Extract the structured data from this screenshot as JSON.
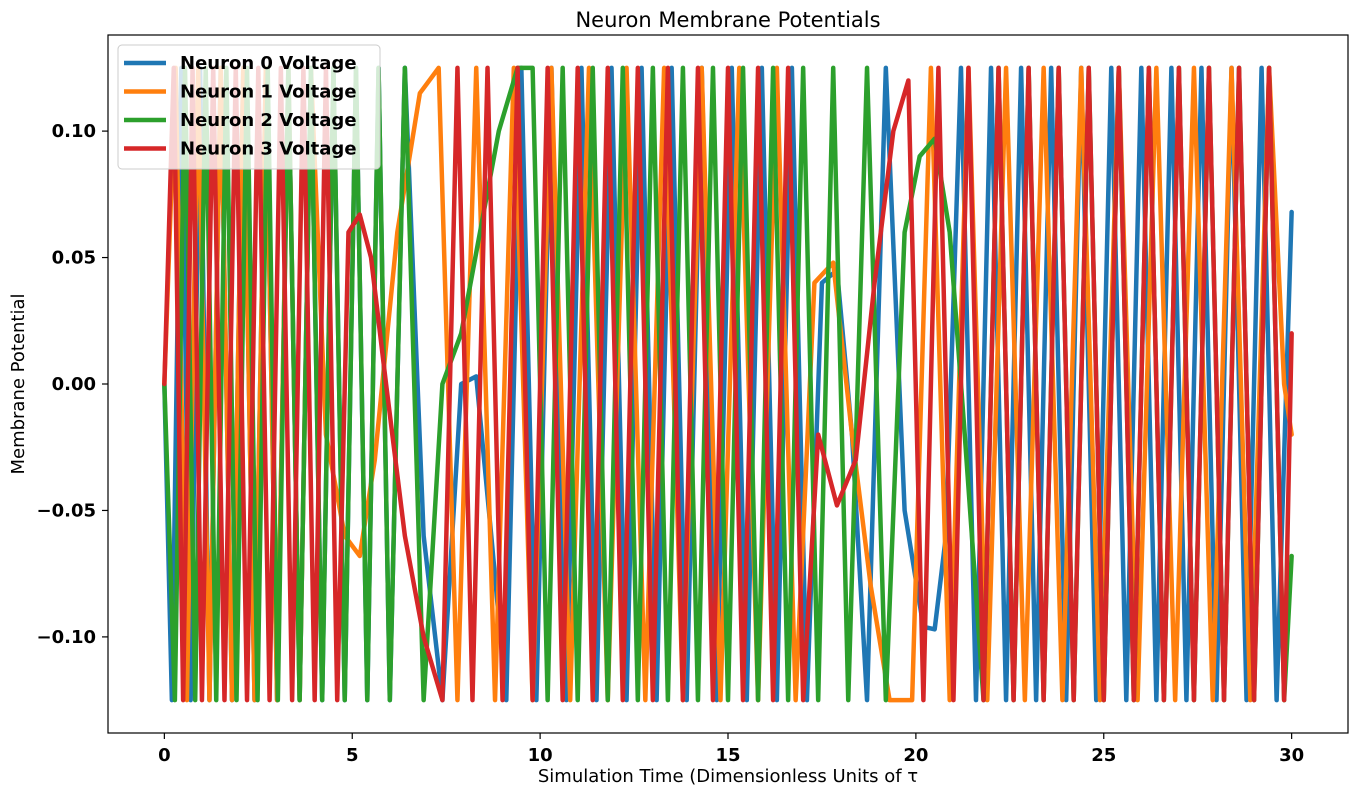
{
  "chart_data": {
    "type": "line",
    "title": "Neuron Membrane Potentials",
    "xlabel": "Simulation Time (Dimensionless Units of τ",
    "ylabel": "Membrane Potential",
    "xlim": [
      -1.5,
      31.5
    ],
    "ylim": [
      -0.138,
      0.138
    ],
    "xticks": [
      0,
      5,
      10,
      15,
      20,
      25,
      30
    ],
    "xtick_labels": [
      "0",
      "5",
      "10",
      "15",
      "20",
      "25",
      "30"
    ],
    "yticks": [
      -0.1,
      -0.05,
      0.0,
      0.05,
      0.1
    ],
    "ytick_labels": [
      "−0.10",
      "−0.05",
      "0.00",
      "0.05",
      "0.10"
    ],
    "grid": false,
    "legend_position": "upper-left",
    "series": [
      {
        "name": "Neuron 0 Voltage",
        "color": "#1f77b4",
        "x": [
          0,
          0.2,
          0.45,
          0.7,
          0.95,
          1.2,
          1.5,
          1.8,
          2.1,
          2.4,
          2.7,
          3.0,
          3.3,
          3.6,
          3.9,
          4.2,
          4.5,
          4.8,
          5.1,
          5.4,
          5.7,
          6.0,
          6.4,
          6.9,
          7.4,
          7.9,
          8.3,
          8.7,
          9.1,
          9.5,
          9.9,
          10.3,
          10.7,
          11.1,
          11.5,
          11.9,
          12.3,
          12.7,
          13.1,
          13.5,
          13.9,
          14.3,
          14.7,
          15.1,
          15.5,
          15.9,
          16.3,
          16.7,
          17.1,
          17.5,
          17.9,
          18.3,
          18.7,
          19.2,
          19.7,
          20.2,
          20.5,
          20.8,
          21.2,
          21.6,
          22.0,
          22.4,
          22.8,
          23.2,
          23.6,
          24.0,
          24.4,
          24.8,
          25.2,
          25.6,
          26.0,
          26.4,
          26.8,
          27.2,
          27.6,
          28.0,
          28.4,
          28.8,
          29.2,
          29.6,
          30.0
        ],
        "y": [
          0,
          -0.125,
          0.125,
          -0.125,
          0.125,
          -0.125,
          0.125,
          -0.125,
          0.125,
          -0.125,
          0.125,
          -0.125,
          0.125,
          -0.125,
          0.125,
          -0.125,
          0.125,
          -0.125,
          0.125,
          -0.125,
          0.125,
          -0.125,
          0.125,
          -0.06,
          -0.125,
          0.0,
          0.003,
          -0.06,
          -0.125,
          0.125,
          -0.125,
          0.125,
          -0.125,
          0.125,
          -0.125,
          0.125,
          -0.125,
          0.125,
          -0.125,
          0.125,
          -0.125,
          0.125,
          -0.125,
          0.125,
          -0.125,
          0.125,
          -0.125,
          0.125,
          -0.125,
          0.04,
          0.045,
          -0.02,
          -0.125,
          0.125,
          -0.05,
          -0.096,
          -0.097,
          -0.06,
          0.125,
          -0.125,
          0.125,
          -0.125,
          0.125,
          -0.125,
          0.125,
          -0.125,
          0.125,
          -0.125,
          0.125,
          -0.125,
          0.125,
          -0.125,
          0.125,
          -0.125,
          0.125,
          -0.125,
          0.125,
          -0.125,
          0.125,
          -0.125,
          0.068
        ]
      },
      {
        "name": "Neuron 1 Voltage",
        "color": "#ff7f0e",
        "x": [
          0,
          0.3,
          0.6,
          0.9,
          1.2,
          1.5,
          1.8,
          2.1,
          2.4,
          2.7,
          3.0,
          3.3,
          3.6,
          3.9,
          4.3,
          4.8,
          5.2,
          5.6,
          6.2,
          6.8,
          7.3,
          7.8,
          8.3,
          8.8,
          9.3,
          9.8,
          10.3,
          10.8,
          11.3,
          11.8,
          12.3,
          12.8,
          13.3,
          13.8,
          14.3,
          14.8,
          15.3,
          15.8,
          16.3,
          16.8,
          17.3,
          17.8,
          18.3,
          18.8,
          19.3,
          19.9,
          20.4,
          20.9,
          21.4,
          21.9,
          22.4,
          22.9,
          23.4,
          23.9,
          24.4,
          24.9,
          25.4,
          25.9,
          26.4,
          26.9,
          27.4,
          27.9,
          28.4,
          28.9,
          29.4,
          29.8,
          30.0
        ],
        "y": [
          0,
          0.125,
          -0.125,
          0.125,
          -0.125,
          0.125,
          -0.125,
          0.125,
          -0.125,
          0.125,
          -0.125,
          0.125,
          -0.125,
          0.125,
          -0.02,
          -0.06,
          -0.068,
          -0.03,
          0.06,
          0.115,
          0.125,
          -0.125,
          0.125,
          -0.125,
          0.125,
          -0.125,
          0.125,
          -0.125,
          0.125,
          -0.125,
          0.125,
          -0.125,
          0.125,
          -0.125,
          0.125,
          -0.125,
          0.125,
          -0.125,
          0.125,
          -0.125,
          0.04,
          0.048,
          -0.02,
          -0.08,
          -0.125,
          -0.125,
          0.125,
          -0.125,
          0.125,
          -0.125,
          0.125,
          -0.125,
          0.125,
          -0.125,
          0.125,
          -0.125,
          0.125,
          -0.125,
          0.125,
          -0.125,
          0.125,
          -0.125,
          0.125,
          -0.125,
          0.125,
          0.0,
          -0.02
        ]
      },
      {
        "name": "Neuron 2 Voltage",
        "color": "#2ca02c",
        "x": [
          0,
          0.28,
          0.55,
          0.82,
          1.1,
          1.38,
          1.65,
          1.92,
          2.2,
          2.48,
          2.75,
          3.02,
          3.3,
          3.6,
          3.9,
          4.2,
          4.5,
          4.8,
          5.1,
          5.4,
          5.7,
          6.0,
          6.4,
          6.9,
          7.4,
          7.9,
          8.4,
          8.9,
          9.4,
          9.8,
          10.2,
          10.6,
          11.0,
          11.4,
          11.8,
          12.2,
          12.6,
          13.0,
          13.4,
          13.8,
          14.2,
          14.6,
          15.0,
          15.4,
          15.8,
          16.2,
          16.6,
          17.0,
          17.4,
          17.8,
          18.2,
          18.7,
          19.2,
          19.7,
          20.1,
          20.5,
          20.9,
          21.3,
          21.8,
          22.2,
          22.6,
          23.0,
          23.4,
          23.8,
          24.2,
          24.6,
          25.0,
          25.4,
          25.8,
          26.2,
          26.6,
          27.0,
          27.4,
          27.8,
          28.2,
          28.6,
          29.0,
          29.4,
          29.8,
          30.0
        ],
        "y": [
          0,
          -0.125,
          0.125,
          -0.125,
          0.125,
          -0.125,
          0.125,
          -0.125,
          0.125,
          -0.125,
          0.125,
          -0.125,
          0.125,
          -0.125,
          0.125,
          -0.125,
          0.125,
          -0.125,
          0.125,
          -0.125,
          0.125,
          -0.125,
          0.125,
          -0.125,
          0.0,
          0.02,
          0.06,
          0.1,
          0.125,
          0.125,
          -0.125,
          0.125,
          -0.125,
          0.125,
          -0.125,
          0.125,
          -0.125,
          0.125,
          -0.125,
          0.125,
          -0.125,
          0.125,
          -0.125,
          0.125,
          -0.125,
          0.125,
          -0.125,
          0.125,
          -0.125,
          0.125,
          -0.125,
          0.125,
          -0.125,
          0.06,
          0.09,
          0.097,
          0.06,
          -0.02,
          -0.125,
          0.125,
          -0.125,
          0.125,
          -0.125,
          0.125,
          -0.125,
          0.125,
          -0.125,
          0.125,
          -0.125,
          0.125,
          -0.125,
          0.125,
          -0.125,
          0.125,
          -0.125,
          0.125,
          -0.125,
          0.125,
          -0.125,
          -0.068
        ]
      },
      {
        "name": "Neuron 3 Voltage",
        "color": "#d62728",
        "x": [
          0,
          0.25,
          0.5,
          0.75,
          1.0,
          1.3,
          1.6,
          1.9,
          2.2,
          2.5,
          2.8,
          3.1,
          3.4,
          3.7,
          4.0,
          4.3,
          4.6,
          4.9,
          5.2,
          5.5,
          5.9,
          6.4,
          6.9,
          7.4,
          7.8,
          8.2,
          8.6,
          9.0,
          9.4,
          9.8,
          10.2,
          10.6,
          11.0,
          11.4,
          11.8,
          12.2,
          12.6,
          13.0,
          13.4,
          13.8,
          14.2,
          14.6,
          15.0,
          15.4,
          15.8,
          16.2,
          16.6,
          17.0,
          17.4,
          17.9,
          18.4,
          18.9,
          19.4,
          19.8,
          20.2,
          20.6,
          21.0,
          21.4,
          21.8,
          22.2,
          22.6,
          23.0,
          23.4,
          23.8,
          24.2,
          24.6,
          25.0,
          25.4,
          25.8,
          26.2,
          26.6,
          27.0,
          27.4,
          27.8,
          28.2,
          28.6,
          29.0,
          29.4,
          29.8,
          30.0
        ],
        "y": [
          0,
          0.125,
          -0.125,
          0.125,
          -0.125,
          0.125,
          -0.125,
          0.125,
          -0.125,
          0.125,
          -0.125,
          0.125,
          -0.125,
          0.125,
          -0.125,
          0.125,
          -0.125,
          0.06,
          0.067,
          0.05,
          0.0,
          -0.06,
          -0.1,
          -0.125,
          0.125,
          -0.125,
          0.125,
          -0.125,
          0.125,
          -0.125,
          0.125,
          -0.125,
          0.125,
          -0.125,
          0.125,
          -0.125,
          0.125,
          -0.125,
          0.125,
          -0.125,
          0.125,
          -0.125,
          0.125,
          -0.125,
          0.125,
          -0.125,
          0.125,
          -0.125,
          -0.02,
          -0.048,
          -0.03,
          0.04,
          0.1,
          0.12,
          -0.125,
          0.125,
          -0.125,
          0.125,
          -0.125,
          0.125,
          -0.125,
          0.125,
          -0.125,
          0.125,
          -0.125,
          0.125,
          -0.125,
          0.125,
          -0.125,
          0.125,
          -0.125,
          0.125,
          -0.125,
          0.125,
          -0.125,
          0.125,
          -0.125,
          0.125,
          -0.125,
          0.02
        ]
      }
    ]
  }
}
